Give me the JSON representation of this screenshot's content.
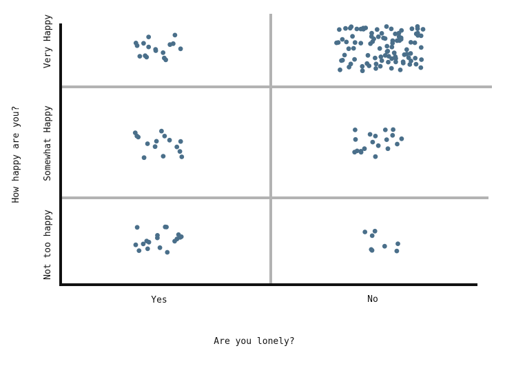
{
  "chart_data": {
    "type": "scatter",
    "title": "",
    "xlabel": "Are you lonely?",
    "ylabel": "How happy are you?",
    "x_categories": [
      "Yes",
      "No"
    ],
    "y_categories": [
      "Not too happy",
      "Somewhat Happy",
      "Very Happy"
    ],
    "jitter": true,
    "grid": true,
    "point_color": "#4a6f8a",
    "grid_color": "#b3b3b3",
    "axis_color": "#111111",
    "series": [
      {
        "x": "Yes",
        "y": "Very Happy",
        "count": 17
      },
      {
        "x": "No",
        "y": "Very Happy",
        "count": 97
      },
      {
        "x": "Yes",
        "y": "Somewhat Happy",
        "count": 15
      },
      {
        "x": "No",
        "y": "Somewhat Happy",
        "count": 19
      },
      {
        "x": "Yes",
        "y": "Not too happy",
        "count": 18
      },
      {
        "x": "No",
        "y": "Not too happy",
        "count": 8
      }
    ]
  }
}
